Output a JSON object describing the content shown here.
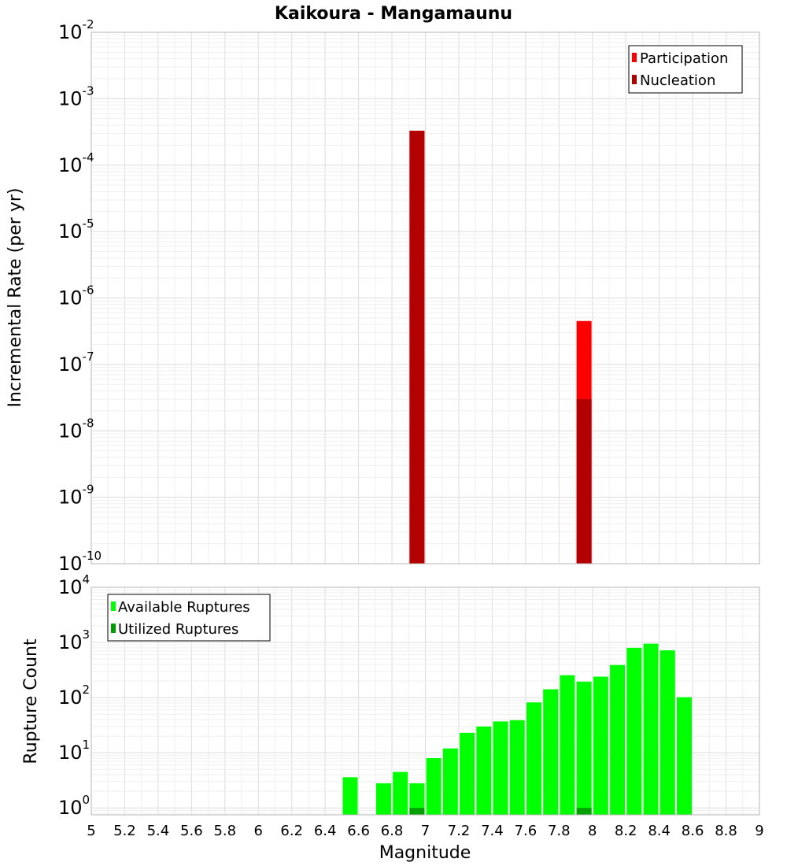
{
  "chart_data": [
    {
      "type": "bar",
      "title": "Kaikoura - Mangamaunu",
      "xlabel": "Magnitude",
      "ylabel": "Incremental Rate (per yr)",
      "xlim": [
        5,
        9
      ],
      "ylim": [
        1e-10,
        0.01
      ],
      "yscale": "log",
      "grid": true,
      "legend_position": "top-right",
      "series": [
        {
          "name": "Participation",
          "color": "#ff0000",
          "points": [
            {
              "x": 6.95,
              "y": 0.00033
            },
            {
              "x": 7.95,
              "y": 4.5e-07
            }
          ]
        },
        {
          "name": "Nucleation",
          "color": "#b30000",
          "points": [
            {
              "x": 6.95,
              "y": 0.00033
            },
            {
              "x": 7.95,
              "y": 3e-08
            }
          ]
        }
      ]
    },
    {
      "type": "bar",
      "title": "",
      "xlabel": "Magnitude",
      "ylabel": "Rupture Count",
      "xlim": [
        5,
        9
      ],
      "ylim": [
        0.75,
        10000
      ],
      "yscale": "log",
      "grid": true,
      "legend_position": "top-left",
      "xticks": [
        "5",
        "5.2",
        "5.4",
        "5.6",
        "5.8",
        "6",
        "6.2",
        "6.4",
        "6.6",
        "6.8",
        "7",
        "7.2",
        "7.4",
        "7.6",
        "7.8",
        "8",
        "8.2",
        "8.4",
        "8.6",
        "8.8",
        "9"
      ],
      "series": [
        {
          "name": "Available Ruptures",
          "color": "#00ff00",
          "points": [
            {
              "x": 6.55,
              "y": 3.6
            },
            {
              "x": 6.75,
              "y": 2.8
            },
            {
              "x": 6.85,
              "y": 4.5
            },
            {
              "x": 6.95,
              "y": 2.8
            },
            {
              "x": 7.05,
              "y": 8
            },
            {
              "x": 7.15,
              "y": 12
            },
            {
              "x": 7.25,
              "y": 23
            },
            {
              "x": 7.35,
              "y": 30
            },
            {
              "x": 7.45,
              "y": 37
            },
            {
              "x": 7.55,
              "y": 39
            },
            {
              "x": 7.65,
              "y": 82
            },
            {
              "x": 7.75,
              "y": 142
            },
            {
              "x": 7.85,
              "y": 255
            },
            {
              "x": 7.95,
              "y": 195
            },
            {
              "x": 8.05,
              "y": 240
            },
            {
              "x": 8.15,
              "y": 390
            },
            {
              "x": 8.25,
              "y": 800
            },
            {
              "x": 8.35,
              "y": 950
            },
            {
              "x": 8.45,
              "y": 720
            },
            {
              "x": 8.55,
              "y": 102
            }
          ]
        },
        {
          "name": "Utilized Ruptures",
          "color": "#00a000",
          "points": [
            {
              "x": 6.95,
              "y": 1
            },
            {
              "x": 7.95,
              "y": 1
            }
          ]
        }
      ]
    }
  ]
}
